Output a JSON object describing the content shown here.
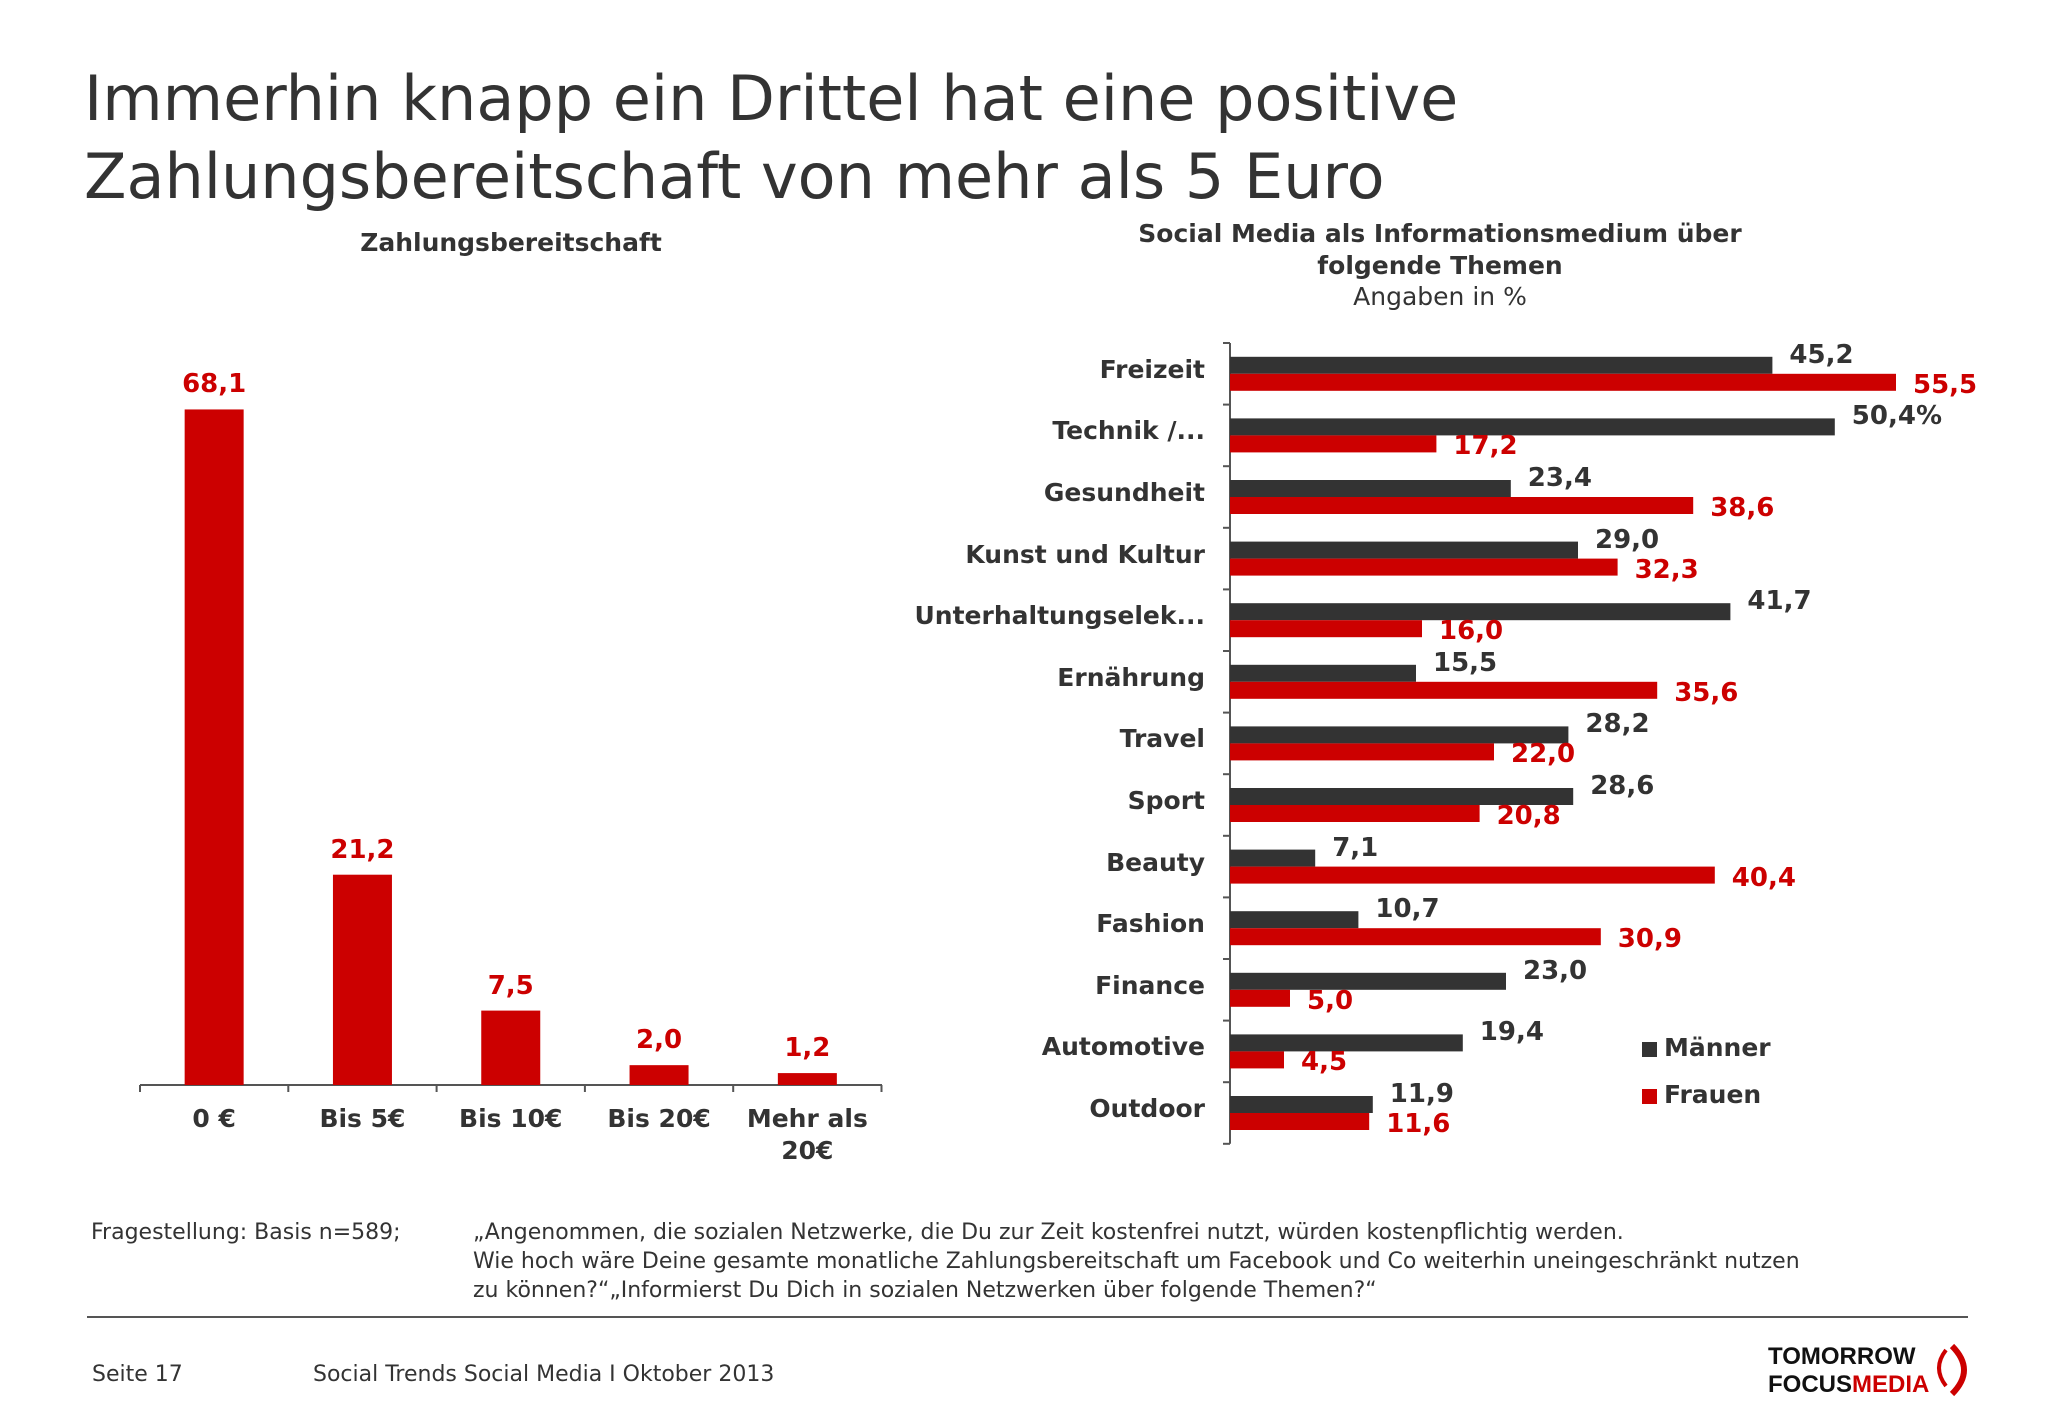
{
  "title": [
    "Immerhin knapp ein Drittel hat eine positive",
    "Zahlungsbereitschaft von mehr als 5 Euro"
  ],
  "colors": {
    "frauen": "#cc0000",
    "maenner": "#333333",
    "text": "#333333"
  },
  "chart_data": [
    {
      "type": "bar",
      "title": "Zahlungsbereitschaft",
      "categories": [
        "0 €",
        "Bis 5€",
        "Bis 10€",
        "Bis 20€",
        "Mehr als 20€"
      ],
      "values": [
        68.1,
        21.2,
        7.5,
        2.0,
        1.2
      ],
      "value_labels": [
        "68,1",
        "21,2",
        "7,5",
        "2,0",
        "1,2"
      ],
      "ylim": [
        0,
        70
      ],
      "grid": false
    },
    {
      "type": "bar",
      "orientation": "horizontal",
      "title": "Social Media als Informationsmedium über folgende Themen",
      "title_lines": [
        "Social Media als Informationsmedium über",
        "folgende Themen"
      ],
      "subtitle": "Angaben in %",
      "categories": [
        "Freizeit",
        "Technik /...",
        "Gesundheit",
        "Kunst und Kultur",
        "Unterhaltungselek...",
        "Ernährung",
        "Travel",
        "Sport",
        "Beauty",
        "Fashion",
        "Finance",
        "Automotive",
        "Outdoor"
      ],
      "series": [
        {
          "name": "Männer",
          "values": [
            45.2,
            50.4,
            23.4,
            29.0,
            41.7,
            15.5,
            28.2,
            28.6,
            7.1,
            10.7,
            23.0,
            19.4,
            11.9
          ],
          "labels": [
            "45,2",
            "50,4%",
            "23,4",
            "29,0",
            "41,7",
            "15,5",
            "28,2",
            "28,6",
            "7,1",
            "10,7",
            "23,0",
            "19,4",
            "11,9"
          ]
        },
        {
          "name": "Frauen",
          "values": [
            55.5,
            17.2,
            38.6,
            32.3,
            16.0,
            35.6,
            22.0,
            20.8,
            40.4,
            30.9,
            5.0,
            4.5,
            11.6
          ],
          "labels": [
            "55,5",
            "17,2",
            "38,6",
            "32,3",
            "16,0",
            "35,6",
            "22,0",
            "20,8",
            "40,4",
            "30,9",
            "5,0",
            "4,5",
            "11,6"
          ]
        }
      ],
      "xlim": [
        0,
        60
      ],
      "grid": false,
      "legend": "bottom-right"
    }
  ],
  "footer": {
    "question_label": "Fragestellung: Basis n=589;",
    "question_lines": [
      "„Angenommen, die sozialen Netzwerke, die Du zur Zeit kostenfrei nutzt, würden kostenpflichtig werden.",
      "Wie hoch wäre Deine gesamte monatliche Zahlungsbereitschaft um Facebook und Co weiterhin uneingeschränkt nutzen",
      "zu können?“„Informierst Du Dich in sozialen Netzwerken über folgende Themen?“"
    ],
    "page": "Seite 17",
    "source": "Social Trends Social Media I Oktober 2013",
    "logo": [
      "TOMORROW",
      "FOCUS",
      "MEDIA"
    ]
  }
}
